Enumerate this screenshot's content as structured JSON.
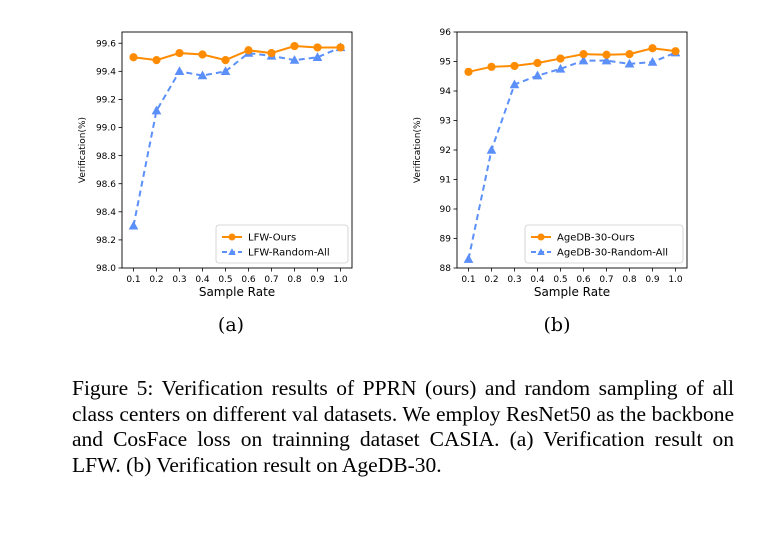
{
  "chart_data": [
    {
      "type": "line",
      "x": [
        0.1,
        0.2,
        0.3,
        0.4,
        0.5,
        0.6,
        0.7,
        0.8,
        0.9,
        1.0
      ],
      "xticks": [
        "0.1",
        "0.2",
        "0.3",
        "0.4",
        "0.5",
        "0.6",
        "0.7",
        "0.8",
        "0.9",
        "1.0"
      ],
      "xlim": [
        0.05,
        1.05
      ],
      "yticks": [
        "98.0",
        "98.2",
        "98.4",
        "98.6",
        "98.8",
        "99.0",
        "99.2",
        "99.4",
        "99.6"
      ],
      "ylim": [
        98.0,
        99.68
      ],
      "xlabel": "Sample Rate",
      "ylabel": "Verification(%)",
      "grid": false,
      "legend_position": "lower-right",
      "series": [
        {
          "name": "LFW-Ours",
          "color": "#ff8c00",
          "marker": "circle",
          "linestyle": "solid",
          "values": [
            99.5,
            99.48,
            99.53,
            99.52,
            99.48,
            99.55,
            99.53,
            99.58,
            99.57,
            99.57
          ]
        },
        {
          "name": "LFW-Random-All",
          "color": "#5b8ff9",
          "marker": "triangle",
          "linestyle": "dashed",
          "values": [
            98.3,
            99.12,
            99.4,
            99.37,
            99.4,
            99.53,
            99.51,
            99.48,
            99.5,
            99.57
          ]
        }
      ]
    },
    {
      "type": "line",
      "x": [
        0.1,
        0.2,
        0.3,
        0.4,
        0.5,
        0.6,
        0.7,
        0.8,
        0.9,
        1.0
      ],
      "xticks": [
        "0.1",
        "0.2",
        "0.3",
        "0.4",
        "0.5",
        "0.6",
        "0.7",
        "0.8",
        "0.9",
        "1.0"
      ],
      "xlim": [
        0.05,
        1.05
      ],
      "yticks": [
        "88",
        "89",
        "90",
        "91",
        "92",
        "93",
        "94",
        "95",
        "96"
      ],
      "ylim": [
        88.0,
        96.0
      ],
      "xlabel": "Sample Rate",
      "ylabel": "Verification(%)",
      "grid": false,
      "legend_position": "lower-right",
      "series": [
        {
          "name": "AgeDB-30-Ours",
          "color": "#ff8c00",
          "marker": "circle",
          "linestyle": "solid",
          "values": [
            94.65,
            94.82,
            94.85,
            94.95,
            95.1,
            95.25,
            95.23,
            95.25,
            95.45,
            95.35
          ]
        },
        {
          "name": "AgeDB-30-Random-All",
          "color": "#5b8ff9",
          "marker": "triangle",
          "linestyle": "dashed",
          "values": [
            88.3,
            92.0,
            94.22,
            94.52,
            94.75,
            95.03,
            95.03,
            94.92,
            94.98,
            95.3
          ]
        }
      ]
    }
  ],
  "sublabels": [
    "(a)",
    "(b)"
  ],
  "caption": "Figure 5: Verification results of PPRN (ours) and random sampling of all class centers on different val datasets. We employ ResNet50 as the backbone and CosFace loss on trainning dataset CASIA. (a) Verification result on LFW. (b) Verification result on AgeDB-30."
}
